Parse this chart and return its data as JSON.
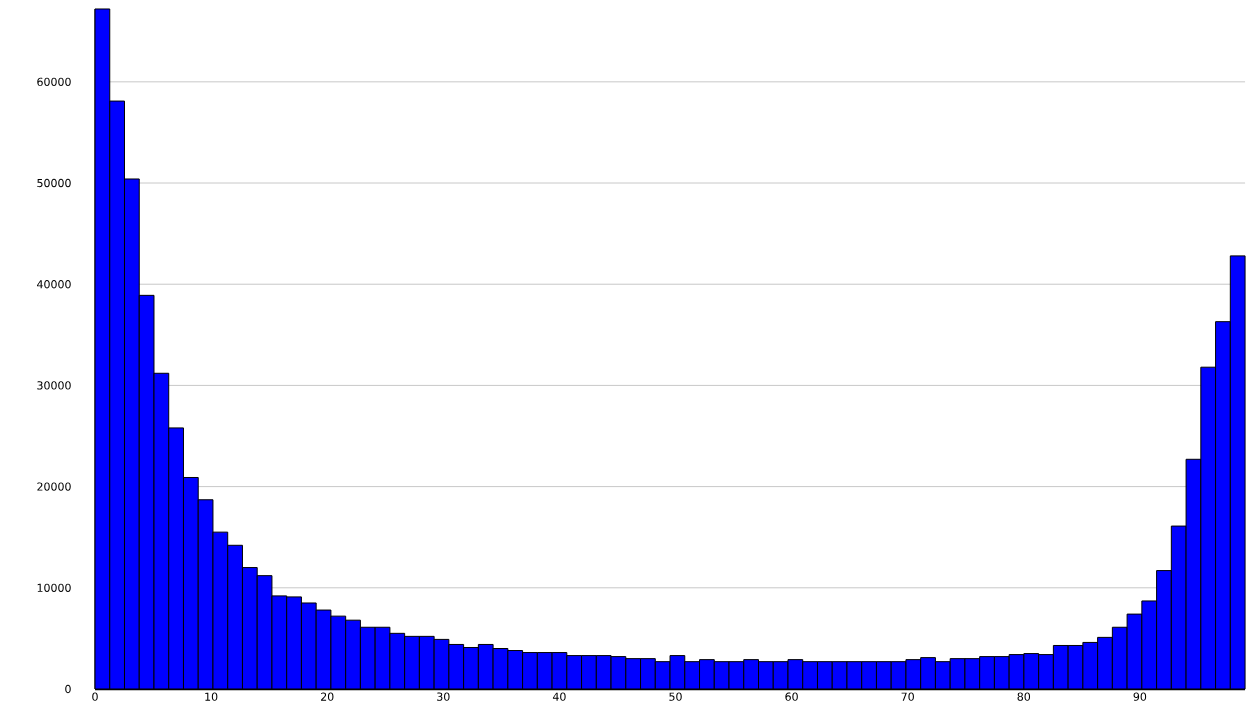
{
  "chart_data": {
    "type": "histogram",
    "bins": [
      0,
      1.27,
      2.54,
      3.81,
      5.08,
      6.35,
      7.62,
      8.89,
      10.16,
      11.43,
      12.7,
      13.97,
      15.24,
      16.51,
      17.78,
      19.05,
      20.32,
      21.59,
      22.86,
      24.13,
      25.4,
      26.67,
      27.94,
      29.21,
      30.48,
      31.75,
      33.02,
      34.29,
      35.56,
      36.83,
      38.1,
      39.37,
      40.64,
      41.91,
      43.18,
      44.45,
      45.72,
      46.99,
      48.26,
      49.53,
      50.8,
      52.07,
      53.34,
      54.61,
      55.88,
      57.15,
      58.42,
      59.69,
      60.96,
      62.23,
      63.5,
      64.77,
      66.04,
      67.31,
      68.58,
      69.85,
      71.12,
      72.39,
      73.66,
      74.93,
      76.2,
      77.47,
      78.74,
      80.01,
      81.28,
      82.55,
      83.82,
      85.09,
      86.36,
      87.63,
      88.9,
      90.17,
      91.44,
      92.71,
      93.98,
      95.25,
      96.52,
      97.79,
      99.06
    ],
    "values": [
      67200,
      58100,
      50400,
      38900,
      31200,
      25800,
      20900,
      18700,
      15500,
      14200,
      12000,
      11200,
      9200,
      9100,
      8500,
      7800,
      7200,
      6800,
      6100,
      6100,
      5500,
      5200,
      5200,
      4900,
      4400,
      4100,
      4400,
      4000,
      3800,
      3600,
      3600,
      3600,
      3300,
      3300,
      3300,
      3200,
      3000,
      3000,
      2700,
      3300,
      2700,
      2900,
      2700,
      2700,
      2900,
      2700,
      2700,
      2900,
      2700,
      2700,
      2700,
      2700,
      2700,
      2700,
      2700,
      2900,
      3100,
      2700,
      3000,
      3000,
      3200,
      3200,
      3400,
      3500,
      3400,
      4300,
      4300,
      4600,
      5100,
      6100,
      7400,
      8700,
      11700,
      16100,
      22700,
      31800,
      36300,
      42800
    ],
    "color": "#0000ff",
    "xlim": [
      0,
      99.06
    ],
    "ylim": [
      0,
      67200
    ],
    "xticks": [
      0,
      10,
      20,
      30,
      40,
      50,
      60,
      70,
      80,
      90
    ],
    "yticks": [
      0,
      10000,
      20000,
      30000,
      40000,
      50000,
      60000
    ],
    "grid": "y"
  }
}
